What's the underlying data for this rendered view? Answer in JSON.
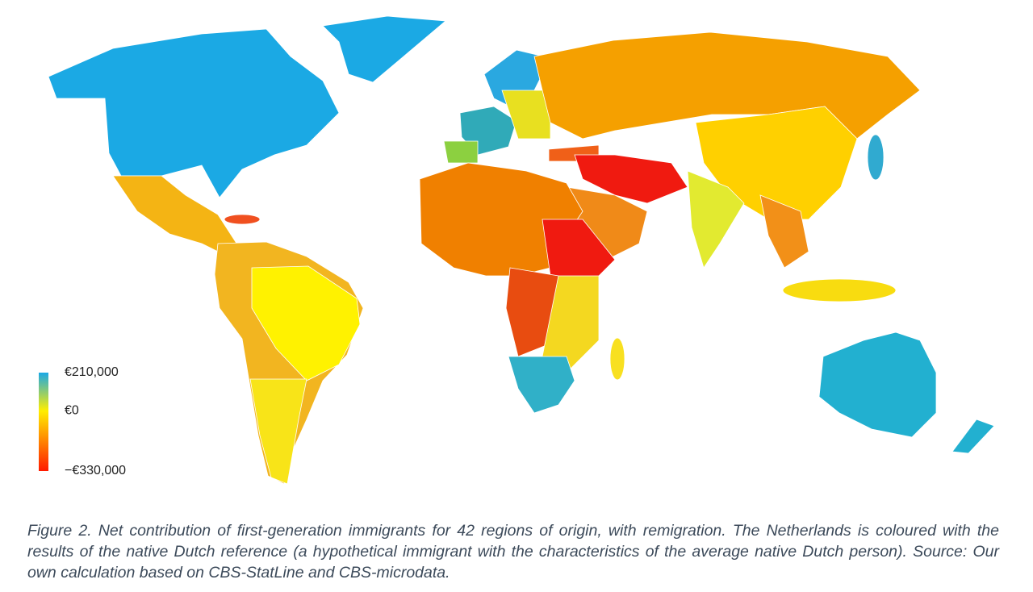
{
  "legend": {
    "ticks": [
      {
        "value": 210000,
        "label": "€210,000"
      },
      {
        "value": 0,
        "label": "€0"
      },
      {
        "value": -330000,
        "label": "−€330,000"
      }
    ],
    "colors": [
      "#1aa8e6",
      "#ffee00",
      "#ff1a00"
    ]
  },
  "caption": "Figure 2. Net contribution of first-generation immigrants for 42 regions of origin, with remigration. The Netherlands is coloured with the results of the native Dutch reference (a hypothetical immigrant with the characteristics of the average native Dutch person). Source: Our own calculation based on CBS-StatLine and CBS-microdata."
}
